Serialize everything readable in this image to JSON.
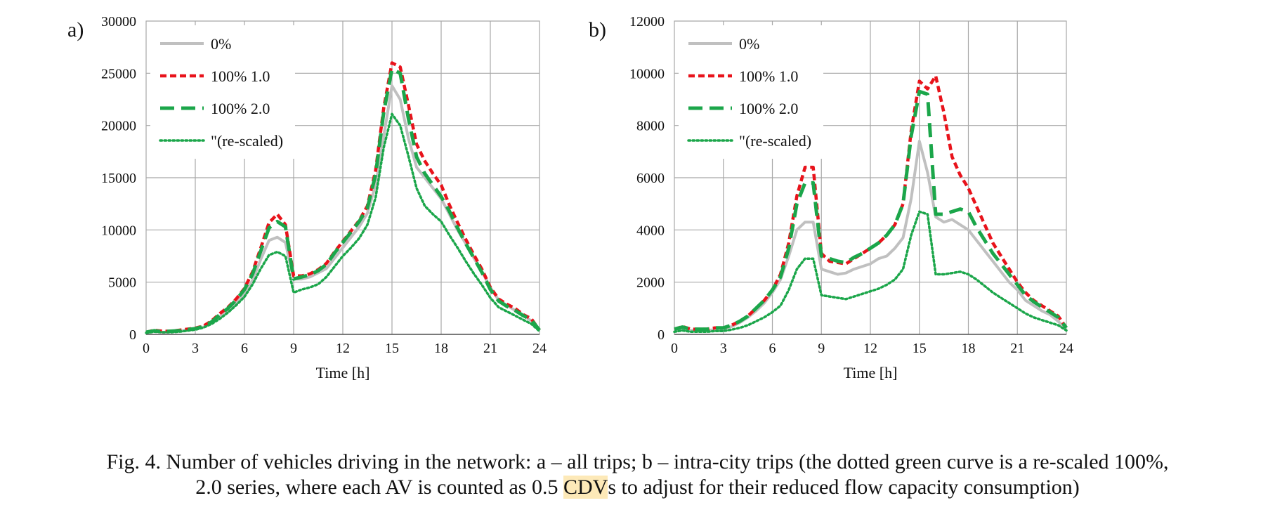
{
  "caption": {
    "line1": "Fig. 4. Number of vehicles driving in the network: a – all trips; b – intra-city trips (the dotted green curve is a re-scaled 100%,",
    "line2_before": "2.0 series, where each AV is counted as 0.5 ",
    "line2_highlight": "CDV",
    "line2_after": "s to adjust for their reduced flow capacity consumption)"
  },
  "styles": {
    "0%": {
      "color": "#c0c0c0",
      "dash": "solid"
    },
    "100% 1.0": {
      "color": "#e8131b",
      "dash": "dashed-short"
    },
    "100% 2.0": {
      "color": "#1ba64a",
      "dash": "dashed-long"
    },
    "\"(re-scaled)": {
      "color": "#1ba64a",
      "dash": "dotted"
    }
  },
  "chart_data": [
    {
      "panel_label": "a)",
      "type": "line",
      "xlabel": "Time [h]",
      "ylabel": "",
      "xlim": [
        0,
        24
      ],
      "ylim": [
        0,
        30000
      ],
      "xticks": [
        0,
        3,
        6,
        9,
        12,
        15,
        18,
        21,
        24
      ],
      "yticks": [
        0,
        5000,
        10000,
        15000,
        20000,
        25000,
        30000
      ],
      "grid": true,
      "legend": "top-left",
      "x": [
        0,
        0.5,
        1,
        1.5,
        2,
        2.5,
        3,
        3.5,
        4,
        4.5,
        5,
        5.5,
        6,
        6.5,
        7,
        7.5,
        8,
        8.5,
        9,
        9.5,
        10,
        10.5,
        11,
        11.5,
        12,
        12.5,
        13,
        13.5,
        14,
        14.5,
        15,
        15.5,
        16,
        16.5,
        17,
        17.5,
        18,
        18.5,
        19,
        19.5,
        20,
        20.5,
        21,
        21.5,
        22,
        22.5,
        23,
        23.5,
        24
      ],
      "series": [
        {
          "name": "0%",
          "values": [
            200,
            300,
            200,
            250,
            300,
            400,
            500,
            700,
            1100,
            1700,
            2300,
            3000,
            3900,
            5200,
            7200,
            9000,
            9300,
            8800,
            5300,
            5300,
            5500,
            5900,
            6300,
            7300,
            8300,
            9300,
            10300,
            11600,
            14300,
            19000,
            23800,
            22500,
            18800,
            16000,
            15000,
            14000,
            13000,
            11500,
            10000,
            8700,
            7300,
            6000,
            4500,
            3300,
            2800,
            2300,
            1800,
            1300,
            400
          ]
        },
        {
          "name": "100% 1.0",
          "values": [
            200,
            400,
            300,
            300,
            400,
            500,
            600,
            800,
            1300,
            2000,
            2600,
            3400,
            4400,
            6000,
            8300,
            10700,
            11500,
            10500,
            5600,
            5600,
            5800,
            6200,
            6800,
            7900,
            8900,
            9900,
            10900,
            12300,
            15700,
            21700,
            26000,
            25600,
            22000,
            18200,
            16600,
            15400,
            14300,
            12400,
            10700,
            9100,
            7600,
            6200,
            4500,
            3400,
            2900,
            2500,
            1900,
            1500,
            400
          ]
        },
        {
          "name": "100% 2.0",
          "values": [
            200,
            350,
            250,
            300,
            350,
            450,
            550,
            750,
            1200,
            1900,
            2500,
            3300,
            4300,
            5800,
            8000,
            10200,
            10800,
            10300,
            5300,
            5500,
            5700,
            6100,
            6700,
            7800,
            8800,
            9800,
            10800,
            12100,
            15300,
            21300,
            25400,
            25000,
            20700,
            17000,
            15400,
            14300,
            13200,
            11800,
            10200,
            8700,
            7300,
            5900,
            4300,
            3200,
            2700,
            2300,
            1800,
            1400,
            400
          ]
        },
        {
          "name": "\"(re-scaled)",
          "values": [
            150,
            250,
            200,
            200,
            250,
            350,
            450,
            650,
            1000,
            1500,
            2100,
            2800,
            3600,
            4800,
            6300,
            7600,
            7900,
            7500,
            4000,
            4300,
            4500,
            4800,
            5500,
            6500,
            7500,
            8300,
            9200,
            10500,
            13100,
            17900,
            21100,
            20000,
            17100,
            14000,
            12300,
            11500,
            10800,
            9500,
            8300,
            7000,
            5800,
            4700,
            3500,
            2600,
            2200,
            1800,
            1400,
            1000,
            300
          ]
        }
      ]
    },
    {
      "panel_label": "b)",
      "type": "line",
      "xlabel": "Time [h]",
      "ylabel": "",
      "xlim": [
        0,
        24
      ],
      "ylim": [
        0,
        12000
      ],
      "xticks": [
        0,
        3,
        6,
        9,
        12,
        15,
        18,
        21,
        24
      ],
      "yticks": [
        0,
        2000,
        4000,
        6000,
        8000,
        10000,
        12000
      ],
      "grid": true,
      "legend": "top-left",
      "x": [
        0,
        0.5,
        1,
        1.5,
        2,
        2.5,
        3,
        3.5,
        4,
        4.5,
        5,
        5.5,
        6,
        6.5,
        7,
        7.5,
        8,
        8.5,
        9,
        9.5,
        10,
        10.5,
        11,
        11.5,
        12,
        12.5,
        13,
        13.5,
        14,
        14.5,
        15,
        15.5,
        16,
        16.5,
        17,
        17.5,
        18,
        18.5,
        19,
        19.5,
        20,
        20.5,
        21,
        21.5,
        22,
        22.5,
        23,
        23.5,
        24
      ],
      "series": [
        {
          "name": "0%",
          "values": [
            150,
            200,
            150,
            150,
            150,
            180,
            200,
            300,
            450,
            650,
            900,
            1200,
            1600,
            2100,
            3000,
            4000,
            4300,
            4300,
            2500,
            2400,
            2300,
            2350,
            2500,
            2600,
            2700,
            2900,
            3000,
            3300,
            3700,
            5200,
            7400,
            6200,
            4500,
            4300,
            4400,
            4200,
            4000,
            3600,
            3200,
            2800,
            2400,
            2000,
            1700,
            1300,
            1100,
            900,
            750,
            500,
            200
          ]
        },
        {
          "name": "100% 1.0",
          "values": [
            200,
            300,
            200,
            200,
            200,
            250,
            250,
            350,
            500,
            700,
            1000,
            1300,
            1700,
            2300,
            3500,
            5300,
            6400,
            6400,
            3100,
            2800,
            2750,
            2700,
            2900,
            3100,
            3300,
            3500,
            3800,
            4200,
            5000,
            7800,
            9700,
            9400,
            9900,
            8500,
            6800,
            6100,
            5600,
            4900,
            4200,
            3500,
            3000,
            2500,
            2000,
            1600,
            1300,
            1100,
            900,
            700,
            250
          ]
        },
        {
          "name": "100% 2.0",
          "values": [
            200,
            280,
            200,
            200,
            200,
            250,
            250,
            350,
            500,
            700,
            1000,
            1300,
            1700,
            2200,
            3300,
            5000,
            5800,
            5800,
            3000,
            2900,
            2800,
            2750,
            2950,
            3100,
            3300,
            3500,
            3800,
            4200,
            5000,
            7600,
            9300,
            9200,
            4600,
            4600,
            4700,
            4800,
            4700,
            4100,
            3600,
            3100,
            2700,
            2300,
            1900,
            1500,
            1250,
            1050,
            850,
            650,
            250
          ]
        },
        {
          "name": "\"(re-scaled)",
          "values": [
            100,
            150,
            100,
            100,
            100,
            130,
            130,
            180,
            250,
            350,
            500,
            650,
            850,
            1100,
            1700,
            2500,
            2900,
            2900,
            1500,
            1450,
            1400,
            1350,
            1450,
            1550,
            1650,
            1750,
            1900,
            2100,
            2500,
            3800,
            4700,
            4600,
            2300,
            2300,
            2350,
            2400,
            2300,
            2100,
            1850,
            1600,
            1400,
            1200,
            1000,
            800,
            650,
            550,
            450,
            350,
            150
          ]
        }
      ]
    }
  ]
}
